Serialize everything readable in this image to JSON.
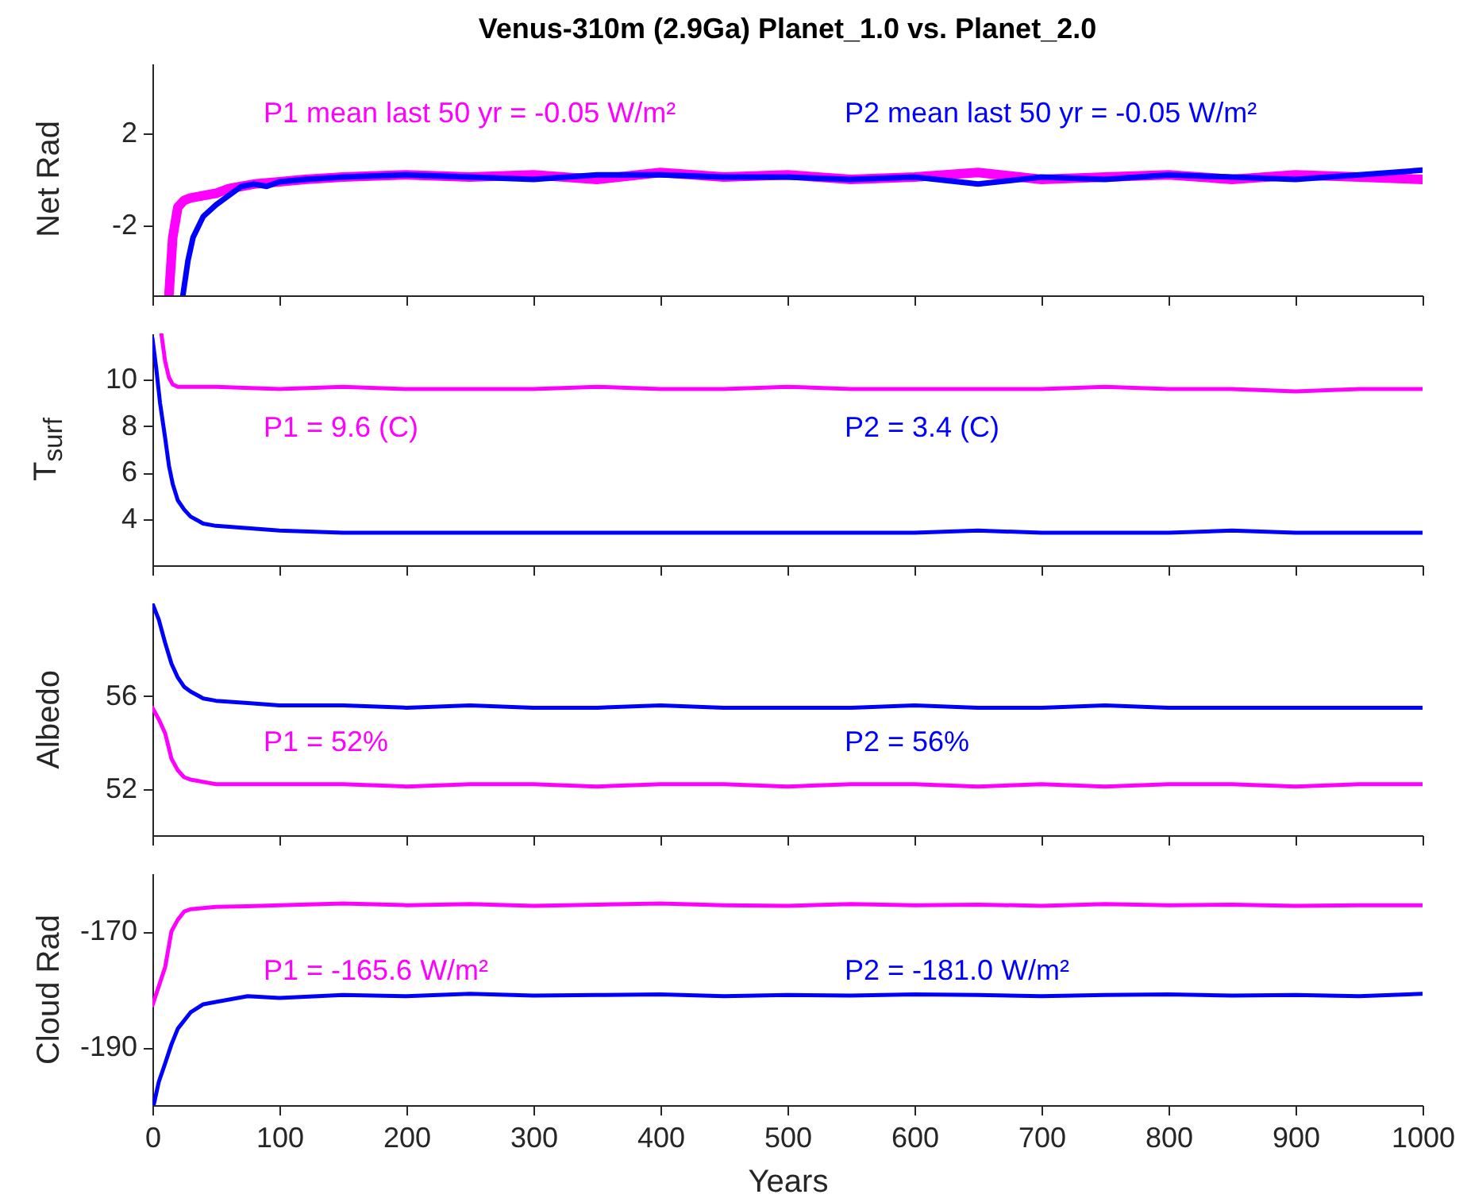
{
  "chart_data": [
    {
      "type": "line",
      "title": "Venus-310m (2.9Ga) Planet_1.0 vs. Planet_2.0",
      "ylabel": "Net Rad",
      "xlim": [
        0,
        1000
      ],
      "xticks": [
        0,
        100,
        200,
        300,
        400,
        500,
        600,
        700,
        800,
        900,
        1000
      ],
      "ylim": [
        -5,
        5
      ],
      "yticks": [
        -2,
        2
      ],
      "tick_labels": "y",
      "annotations": [
        "P1 mean last 50 yr =  -0.05 W/m²",
        "P2 mean last 50 yr =  -0.05 W/m²"
      ],
      "series": [
        {
          "color": "#ff00ff",
          "x": [
            13,
            16,
            20,
            25,
            30,
            40,
            50,
            60,
            70,
            80,
            100,
            120,
            150,
            200,
            250,
            300,
            350,
            400,
            450,
            500,
            550,
            600,
            650,
            700,
            750,
            800,
            850,
            900,
            950,
            1000
          ],
          "values": [
            -5,
            -2.5,
            -1.2,
            -0.9,
            -0.8,
            -0.7,
            -0.6,
            -0.4,
            -0.3,
            -0.2,
            -0.1,
            0.0,
            0.1,
            0.2,
            0.1,
            0.2,
            0.0,
            0.3,
            0.1,
            0.2,
            0.0,
            0.1,
            0.3,
            0.0,
            0.1,
            0.2,
            0.0,
            0.2,
            0.1,
            0.0
          ]
        },
        {
          "color": "#0000ff",
          "x": [
            24,
            28,
            32,
            40,
            50,
            60,
            70,
            80,
            90,
            100,
            120,
            150,
            200,
            250,
            300,
            350,
            400,
            450,
            500,
            550,
            600,
            650,
            700,
            750,
            800,
            850,
            900,
            950,
            1000
          ],
          "values": [
            -5,
            -3.5,
            -2.5,
            -1.6,
            -1.1,
            -0.7,
            -0.3,
            -0.2,
            -0.3,
            -0.1,
            0.0,
            0.1,
            0.2,
            0.1,
            0.0,
            0.2,
            0.2,
            0.1,
            0.1,
            0.0,
            0.1,
            -0.2,
            0.1,
            0.0,
            0.2,
            0.1,
            0.0,
            0.2,
            0.4
          ]
        }
      ]
    },
    {
      "type": "line",
      "ylabel": "T$_{surf}$",
      "xlim": [
        0,
        1000
      ],
      "xticks": [
        0,
        100,
        200,
        300,
        400,
        500,
        600,
        700,
        800,
        900,
        1000
      ],
      "ylim": [
        2,
        12
      ],
      "yticks": [
        4,
        6,
        8,
        10
      ],
      "tick_labels": "y",
      "annotations": [
        "P1 =  9.6 (C)",
        "P2 =  3.4 (C)"
      ],
      "series": [
        {
          "color": "#ff00ff",
          "x": [
            7,
            10,
            13,
            16,
            20,
            30,
            50,
            100,
            150,
            200,
            250,
            300,
            350,
            400,
            450,
            500,
            550,
            600,
            650,
            700,
            750,
            800,
            850,
            900,
            950,
            1000
          ],
          "values": [
            12,
            10.8,
            10.1,
            9.8,
            9.7,
            9.7,
            9.7,
            9.6,
            9.7,
            9.6,
            9.6,
            9.6,
            9.7,
            9.6,
            9.6,
            9.7,
            9.6,
            9.6,
            9.6,
            9.6,
            9.7,
            9.6,
            9.6,
            9.5,
            9.6,
            9.6
          ]
        },
        {
          "color": "#0000ff",
          "x": [
            0,
            3,
            6,
            10,
            13,
            16,
            20,
            25,
            30,
            40,
            50,
            75,
            100,
            150,
            200,
            250,
            300,
            350,
            400,
            450,
            500,
            550,
            600,
            650,
            700,
            750,
            800,
            850,
            900,
            950,
            1000
          ],
          "values": [
            11.8,
            10.5,
            9,
            7.5,
            6.3,
            5.5,
            4.8,
            4.4,
            4.1,
            3.8,
            3.7,
            3.6,
            3.5,
            3.4,
            3.4,
            3.4,
            3.4,
            3.4,
            3.4,
            3.4,
            3.4,
            3.4,
            3.4,
            3.5,
            3.4,
            3.4,
            3.4,
            3.5,
            3.4,
            3.4,
            3.4
          ]
        }
      ]
    },
    {
      "type": "line",
      "ylabel": "Albedo",
      "xlim": [
        0,
        1000
      ],
      "xticks": [
        0,
        100,
        200,
        300,
        400,
        500,
        600,
        700,
        800,
        900,
        1000
      ],
      "ylim": [
        50,
        60
      ],
      "yticks": [
        52,
        56
      ],
      "tick_labels": "y",
      "annotations": [
        "P1 = 52%",
        "P2 = 56%"
      ],
      "series": [
        {
          "color": "#ff00ff",
          "x": [
            0,
            5,
            10,
            15,
            20,
            25,
            30,
            40,
            50,
            75,
            100,
            150,
            200,
            250,
            300,
            350,
            400,
            450,
            500,
            550,
            600,
            650,
            700,
            750,
            800,
            850,
            900,
            950,
            1000
          ],
          "values": [
            55.5,
            55.0,
            54.4,
            53.3,
            52.8,
            52.5,
            52.4,
            52.3,
            52.2,
            52.2,
            52.2,
            52.2,
            52.1,
            52.2,
            52.2,
            52.1,
            52.2,
            52.2,
            52.1,
            52.2,
            52.2,
            52.1,
            52.2,
            52.1,
            52.2,
            52.2,
            52.1,
            52.2,
            52.2
          ]
        },
        {
          "color": "#0000ff",
          "x": [
            0,
            5,
            10,
            15,
            20,
            25,
            30,
            40,
            50,
            75,
            100,
            150,
            200,
            250,
            300,
            350,
            400,
            450,
            500,
            550,
            600,
            650,
            700,
            750,
            800,
            850,
            900,
            950,
            1000
          ],
          "values": [
            60,
            59.3,
            58.3,
            57.4,
            56.8,
            56.4,
            56.2,
            55.9,
            55.8,
            55.7,
            55.6,
            55.6,
            55.5,
            55.6,
            55.5,
            55.5,
            55.6,
            55.5,
            55.5,
            55.5,
            55.6,
            55.5,
            55.5,
            55.6,
            55.5,
            55.5,
            55.5,
            55.5,
            55.5
          ]
        }
      ]
    },
    {
      "type": "line",
      "ylabel": "Cloud Rad",
      "xlabel": "Years",
      "xlim": [
        0,
        1000
      ],
      "xticks": [
        0,
        100,
        200,
        300,
        400,
        500,
        600,
        700,
        800,
        900,
        1000
      ],
      "ylim": [
        -200,
        -160
      ],
      "yticks": [
        -190,
        -170
      ],
      "annotations": [
        "P1 = -165.6 W/m²",
        "P2 = -181.0 W/m²"
      ],
      "series": [
        {
          "color": "#ff00ff",
          "x": [
            0,
            5,
            10,
            15,
            20,
            25,
            30,
            40,
            50,
            75,
            100,
            150,
            200,
            250,
            300,
            350,
            400,
            450,
            500,
            550,
            600,
            650,
            700,
            750,
            800,
            850,
            900,
            950,
            1000
          ],
          "values": [
            -182.8,
            -179.5,
            -176.2,
            -170,
            -168,
            -166.6,
            -166.2,
            -166,
            -165.8,
            -165.7,
            -165.5,
            -165.2,
            -165.5,
            -165.3,
            -165.6,
            -165.4,
            -165.2,
            -165.5,
            -165.6,
            -165.3,
            -165.5,
            -165.4,
            -165.6,
            -165.3,
            -165.5,
            -165.4,
            -165.6,
            -165.5,
            -165.5
          ]
        },
        {
          "color": "#0000ff",
          "x": [
            1,
            5,
            10,
            15,
            20,
            30,
            40,
            50,
            75,
            100,
            150,
            200,
            250,
            300,
            350,
            400,
            450,
            500,
            550,
            600,
            650,
            700,
            750,
            800,
            850,
            900,
            950,
            1000
          ],
          "values": [
            -200,
            -196,
            -192.8,
            -189.5,
            -186.8,
            -184,
            -182.6,
            -182.2,
            -181.2,
            -181.5,
            -181,
            -181.2,
            -180.8,
            -181.1,
            -181,
            -180.9,
            -181.2,
            -181,
            -181.1,
            -180.9,
            -181,
            -181.2,
            -181,
            -180.9,
            -181.1,
            -181,
            -181.2,
            -180.8
          ]
        }
      ]
    }
  ]
}
